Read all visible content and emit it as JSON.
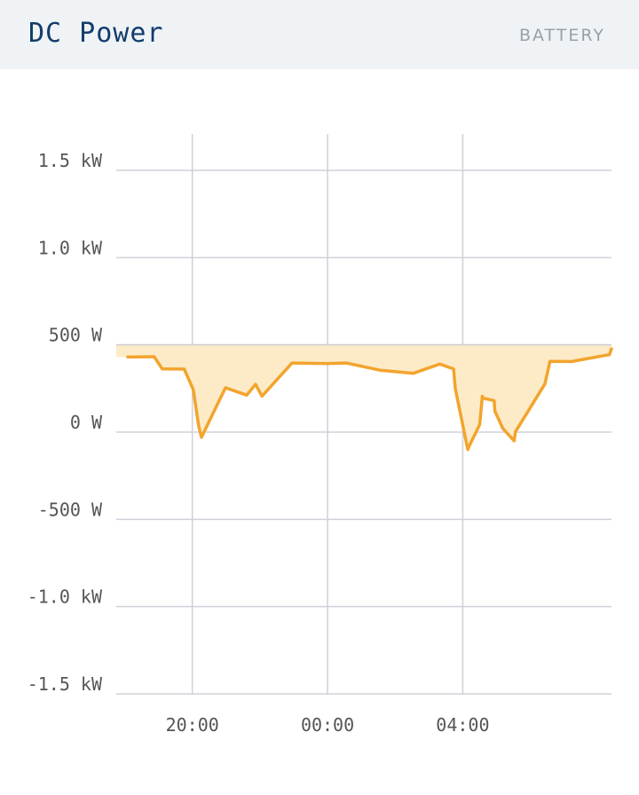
{
  "header": {
    "title": "DC Power",
    "subtitle": "BATTERY"
  },
  "colors": {
    "line": "#f2a42c",
    "fill": "#fdebc8",
    "grid": "#d0d0da",
    "header_bg": "#eff3f6",
    "title": "#123d6b"
  },
  "chart_data": {
    "type": "area",
    "title": "",
    "xlabel": "",
    "ylabel": "",
    "unit": "W",
    "grid": true,
    "ylim": [
      -1500,
      1500
    ],
    "y_ticks": [
      1500,
      1000,
      500,
      0,
      -500,
      -1000,
      -1500
    ],
    "y_tick_labels": [
      "1.5 kW",
      "1.0 kW",
      "500 W",
      "0 W",
      "-500 W",
      "-1.0 kW",
      "-1.5 kW"
    ],
    "x_tick_labels": [
      "20:00",
      "00:00",
      "04:00"
    ],
    "x_ticks_hours": [
      20,
      24,
      28
    ],
    "xlim_hours": [
      17.75,
      32.4
    ],
    "baseline": 500,
    "series": [
      {
        "hours": [
          18.09,
          18.87,
          19.11,
          19.76,
          20.03,
          20.19,
          20.27,
          20.98,
          21.61,
          21.87,
          22.06,
          22.95,
          23.99,
          24.55,
          25.55,
          26.54,
          27.32,
          27.73,
          27.78,
          28.15,
          28.17,
          28.5,
          28.58,
          28.6,
          28.93,
          28.95,
          29.19,
          29.52,
          29.56,
          30.43,
          30.58,
          31.21,
          32.34,
          32.4
        ],
        "values": [
          430,
          432,
          362,
          361,
          243,
          35,
          -30,
          254,
          212,
          274,
          206,
          396,
          393,
          396,
          355,
          337,
          390,
          362,
          250,
          -100,
          -88,
          43,
          206,
          195,
          180,
          120,
          20,
          -50,
          2,
          276,
          406,
          404,
          444,
          477
        ]
      }
    ]
  }
}
